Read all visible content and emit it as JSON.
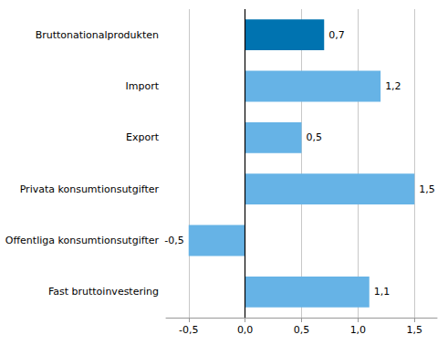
{
  "chart_data": {
    "type": "bar",
    "orientation": "horizontal",
    "categories": [
      "Bruttonationalprodukten",
      "Import",
      "Export",
      "Privata konsumtionsutgifter",
      "Offentliga konsumtionsutgifter",
      "Fast bruttoinvestering"
    ],
    "values": [
      0.7,
      1.2,
      0.5,
      1.5,
      -0.5,
      1.1
    ],
    "value_labels": [
      "0,7",
      "1,2",
      "0,5",
      "1,5",
      "-0,5",
      "1,1"
    ],
    "colors": [
      "#0073b0",
      "#66b3e6",
      "#66b3e6",
      "#66b3e6",
      "#66b3e6",
      "#66b3e6"
    ],
    "xlim": [
      -0.7,
      1.7
    ],
    "xticks": [
      {
        "value": -0.5,
        "label": "-0,5"
      },
      {
        "value": 0,
        "label": "0,0"
      },
      {
        "value": 0.5,
        "label": "0,5"
      },
      {
        "value": 1,
        "label": "1,0"
      },
      {
        "value": 1.5,
        "label": "1,5"
      }
    ],
    "grid": true,
    "data_labels": true
  }
}
